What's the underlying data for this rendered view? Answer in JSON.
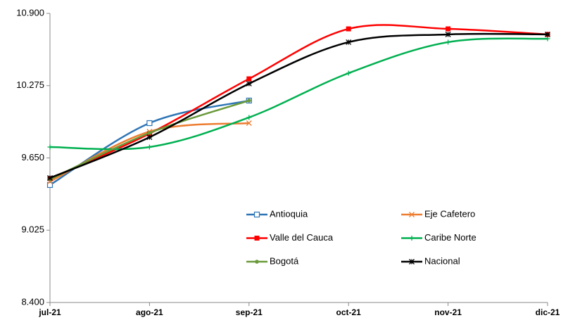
{
  "chart_data": {
    "type": "line",
    "categories": [
      "jul-21",
      "ago-21",
      "sep-21",
      "oct-21",
      "nov-21",
      "dic-21"
    ],
    "ylim": [
      8.4,
      10.9
    ],
    "yticks": [
      {
        "value": 8.4,
        "label": "8.400"
      },
      {
        "value": 9.025,
        "label": "9.025"
      },
      {
        "value": 9.65,
        "label": "9.650"
      },
      {
        "value": 10.275,
        "label": "10.275"
      },
      {
        "value": 10.9,
        "label": "10.900"
      }
    ],
    "grid": false,
    "series": [
      {
        "name": "Antioquia",
        "color": "#2e75b6",
        "marker": "open-square",
        "values": [
          9.416,
          9.951,
          10.146,
          null,
          null,
          null
        ]
      },
      {
        "name": "Eje Cafetero",
        "color": "#ed7d31",
        "marker": "x",
        "values": [
          9.446,
          9.878,
          9.951,
          null,
          null,
          null
        ]
      },
      {
        "name": "Valle del Cauca",
        "color": "#ff0000",
        "marker": "square",
        "values": [
          9.471,
          9.86,
          10.334,
          10.766,
          10.766,
          10.718
        ]
      },
      {
        "name": "Caribe Norte",
        "color": "#00b050",
        "marker": "plus",
        "values": [
          9.744,
          9.744,
          10.0,
          10.383,
          10.651,
          10.681
        ]
      },
      {
        "name": "Bogotá",
        "color": "#6a9a3a",
        "marker": "dot",
        "values": [
          9.465,
          9.866,
          10.146,
          null,
          null,
          null
        ]
      },
      {
        "name": "Nacional",
        "color": "#000000",
        "marker": "star",
        "values": [
          9.477,
          9.829,
          10.292,
          10.651,
          10.718,
          10.718
        ]
      }
    ]
  }
}
